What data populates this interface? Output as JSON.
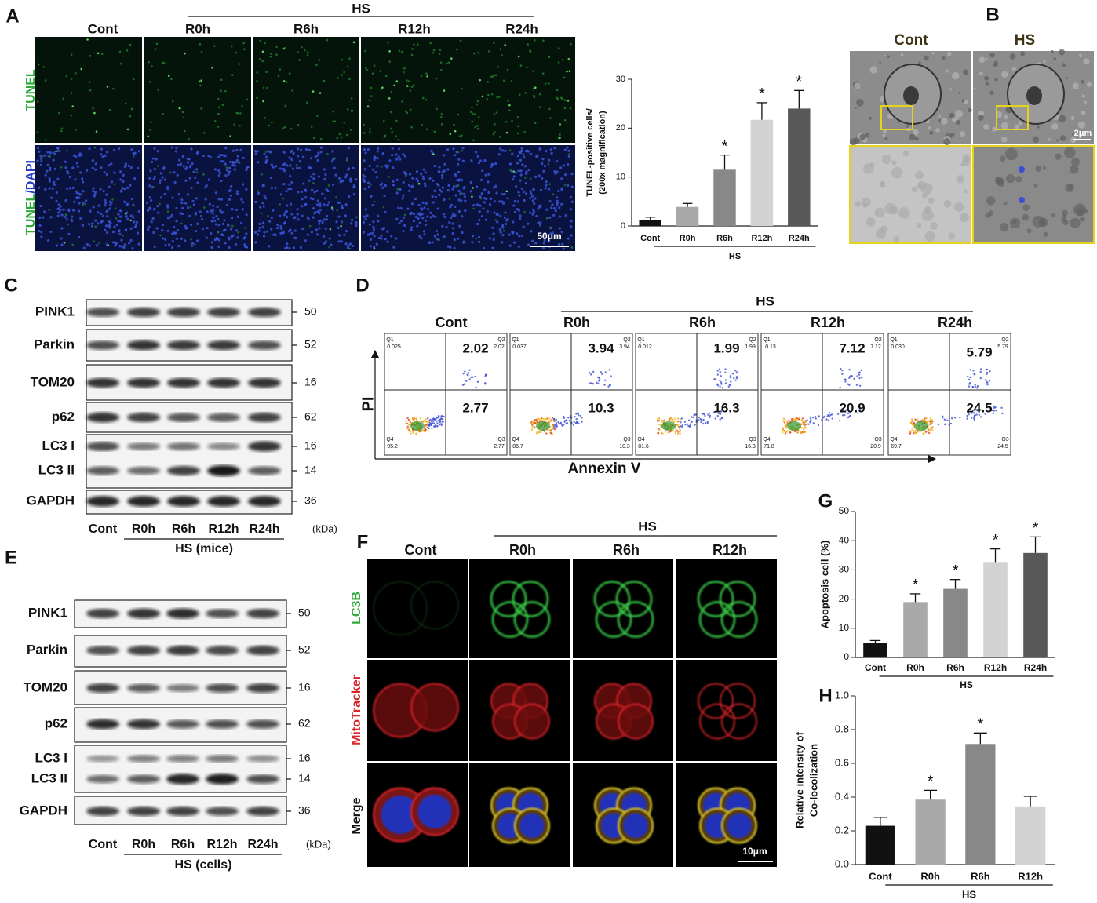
{
  "panels": {
    "letters": [
      "A",
      "B",
      "C",
      "D",
      "E",
      "F",
      "G",
      "H"
    ]
  },
  "tunel": {
    "group": "HS",
    "columns": [
      "Cont",
      "R0h",
      "R6h",
      "R12h",
      "R24h"
    ],
    "row_top": "TUNEL",
    "row_bottom": [
      "TUNEL",
      "/DAPI"
    ],
    "scale": "50μm"
  },
  "tem": {
    "columns": [
      "Cont",
      "HS"
    ],
    "scale": "2μm"
  },
  "blot_mice": {
    "proteins": [
      "PINK1",
      "Parkin",
      "TOM20",
      "p62",
      "LC3 I",
      "LC3 II",
      "GAPDH"
    ],
    "kda": [
      50,
      52,
      16,
      62,
      16,
      14,
      36
    ],
    "lanes": [
      "Cont",
      "R0h",
      "R6h",
      "R12h",
      "R24h"
    ],
    "unit": "(kDa)",
    "group": "HS (mice)"
  },
  "blot_cells": {
    "proteins": [
      "PINK1",
      "Parkin",
      "TOM20",
      "p62",
      "LC3 I",
      "LC3 II",
      "GAPDH"
    ],
    "kda": [
      50,
      52,
      16,
      62,
      16,
      14,
      36
    ],
    "lanes": [
      "Cont",
      "R0h",
      "R6h",
      "R12h",
      "R24h"
    ],
    "unit": "(kDa)",
    "group": "HS (cells)"
  },
  "flow": {
    "group": "HS",
    "columns": [
      "Cont",
      "R0h",
      "R6h",
      "R12h",
      "R24h"
    ],
    "y_label": "PI",
    "x_label": "Annexin V",
    "quadrants": [
      "Q1",
      "Q2",
      "Q3",
      "Q4"
    ],
    "q1": [
      "0.025",
      "0.037",
      "0.012",
      "0.13",
      "0.030"
    ],
    "q2": [
      2.02,
      3.94,
      1.99,
      7.12,
      5.79
    ],
    "q3": [
      2.77,
      10.3,
      16.3,
      20.9,
      24.5
    ],
    "q4": [
      95.2,
      85.7,
      81.6,
      71.8,
      69.7
    ]
  },
  "confocal": {
    "group": "HS",
    "columns": [
      "Cont",
      "R0h",
      "R6h",
      "R12h"
    ],
    "rows": [
      "LC3B",
      "MitoTracker",
      "Merge"
    ],
    "scale": "10μm"
  },
  "chart_data": [
    {
      "type": "bar",
      "ylabel": [
        "TUNEL-positive cells/",
        "(200x magnification)"
      ],
      "categories": [
        "Cont",
        "R0h",
        "R6h",
        "R12h",
        "R24h"
      ],
      "values": [
        1.2,
        3.9,
        11.5,
        21.7,
        24.0
      ],
      "errors": [
        0.6,
        0.7,
        3.0,
        3.5,
        3.7
      ],
      "colors": [
        "#111111",
        "#a9a9a9",
        "#888888",
        "#d3d3d3",
        "#585858"
      ],
      "ylim": [
        0,
        30
      ],
      "yticks": [
        0,
        10,
        20,
        30
      ],
      "group_label": "HS",
      "annotations": [
        {
          "text": "*",
          "category": "R6h"
        },
        {
          "text": "*",
          "category": "R12h"
        },
        {
          "text": "*",
          "category": "R24h"
        }
      ]
    },
    {
      "type": "bar",
      "ylabel": [
        "Apoptosis cell (%)"
      ],
      "categories": [
        "Cont",
        "R0h",
        "R6h",
        "R12h",
        "R24h"
      ],
      "values": [
        5.0,
        19.0,
        23.5,
        32.7,
        35.8
      ],
      "errors": [
        0.8,
        2.8,
        3.2,
        4.5,
        5.5
      ],
      "colors": [
        "#111111",
        "#a9a9a9",
        "#888888",
        "#d3d3d3",
        "#585858"
      ],
      "ylim": [
        0,
        50
      ],
      "yticks": [
        0,
        10,
        20,
        30,
        40,
        50
      ],
      "group_label": "HS",
      "annotations": [
        {
          "text": "*",
          "category": "R0h"
        },
        {
          "text": "*",
          "category": "R6h"
        },
        {
          "text": "*",
          "category": "R12h"
        },
        {
          "text": "*",
          "category": "R24h"
        }
      ]
    },
    {
      "type": "bar",
      "ylabel": [
        "Relative intensity of",
        "Co-locolization"
      ],
      "categories": [
        "Cont",
        "R0h",
        "R6h",
        "R12h"
      ],
      "values": [
        0.23,
        0.385,
        0.715,
        0.345
      ],
      "errors": [
        0.05,
        0.055,
        0.065,
        0.06
      ],
      "colors": [
        "#111111",
        "#a9a9a9",
        "#888888",
        "#d3d3d3"
      ],
      "ylim": [
        0,
        1
      ],
      "yticks": [
        {
          "value": 0,
          "label": "0.0"
        },
        0.2,
        0.4,
        0.6,
        0.8,
        {
          "value": 1,
          "label": "1.0"
        }
      ],
      "group_label": "HS",
      "annotations": [
        {
          "text": "*",
          "category": "R0h"
        },
        {
          "text": "*",
          "category": "R6h"
        }
      ]
    }
  ]
}
